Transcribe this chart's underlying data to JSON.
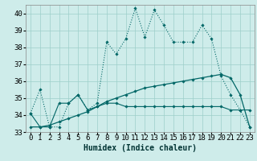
{
  "xlabel": "Humidex (Indice chaleur)",
  "x": [
    0,
    1,
    2,
    3,
    4,
    5,
    6,
    7,
    8,
    9,
    10,
    11,
    12,
    13,
    14,
    15,
    16,
    17,
    18,
    19,
    20,
    21,
    22,
    23
  ],
  "line1": [
    34.1,
    35.5,
    33.3,
    33.3,
    34.7,
    35.2,
    34.3,
    34.7,
    38.3,
    37.6,
    38.5,
    40.3,
    38.6,
    40.2,
    39.3,
    38.3,
    38.3,
    38.3,
    39.3,
    38.5,
    36.3,
    35.2,
    34.3,
    33.3
  ],
  "line2": [
    34.1,
    33.3,
    33.3,
    34.7,
    34.7,
    35.2,
    34.3,
    34.5,
    34.7,
    34.7,
    34.5,
    34.5,
    34.5,
    34.5,
    34.5,
    34.5,
    34.5,
    34.5,
    34.5,
    34.5,
    34.5,
    34.3,
    34.3,
    34.3
  ],
  "line3": [
    33.3,
    33.3,
    33.4,
    33.6,
    33.8,
    34.0,
    34.2,
    34.5,
    34.8,
    35.0,
    35.2,
    35.4,
    35.6,
    35.7,
    35.8,
    35.9,
    36.0,
    36.1,
    36.2,
    36.3,
    36.4,
    36.2,
    35.2,
    33.3
  ],
  "bg_color": "#ceecea",
  "grid_color": "#9dcfca",
  "line_color": "#006666",
  "ylim": [
    33,
    40.5
  ],
  "yticks": [
    33,
    34,
    35,
    36,
    37,
    38,
    39,
    40
  ],
  "xlabel_fontsize": 7,
  "tick_fontsize": 6.5
}
